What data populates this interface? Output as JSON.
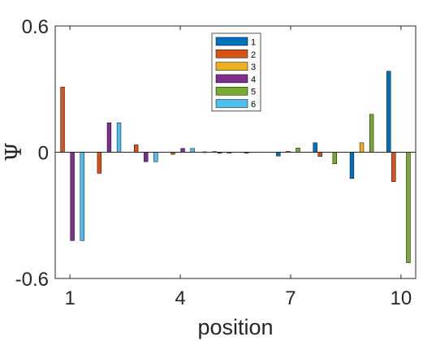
{
  "chart_data": {
    "type": "bar",
    "xlabel": "position",
    "ylabel": "Ψ",
    "xlim": [
      0.6,
      10.4
    ],
    "ylim": [
      -0.6,
      0.6
    ],
    "xticks": [
      1,
      4,
      7,
      10
    ],
    "xtick_labels": [
      "1",
      "4",
      "7",
      "10"
    ],
    "yticks": [
      -0.6,
      0,
      0.6
    ],
    "ytick_labels": [
      "-0.6",
      "0",
      "0.6"
    ],
    "grid": false,
    "legend_position": "top-center",
    "categories": [
      1,
      2,
      3,
      4,
      5,
      6,
      7,
      8,
      9,
      10
    ],
    "series": [
      {
        "name": "1",
        "color": "#0072BD",
        "values": [
          0.0,
          0.0,
          0.0,
          0.0,
          0.002,
          0.0,
          -0.018,
          0.045,
          -0.125,
          0.385
        ]
      },
      {
        "name": "2",
        "color": "#D95319",
        "values": [
          0.31,
          -0.1,
          0.035,
          -0.01,
          0.0,
          -0.005,
          0.0,
          -0.02,
          0.0,
          -0.14
        ]
      },
      {
        "name": "3",
        "color": "#EDB120",
        "values": [
          0.0,
          0.0,
          0.0,
          0.0,
          0.003,
          0.0,
          0.005,
          0.0,
          0.045,
          0.0
        ]
      },
      {
        "name": "4",
        "color": "#7E2F8E",
        "values": [
          -0.42,
          0.14,
          -0.045,
          0.018,
          -0.005,
          0.0,
          0.0,
          0.0,
          0.0,
          0.0
        ]
      },
      {
        "name": "5",
        "color": "#77AC30",
        "values": [
          0.0,
          0.0,
          0.0,
          0.0,
          0.0,
          0.0,
          0.02,
          -0.055,
          0.18,
          -0.525
        ]
      },
      {
        "name": "6",
        "color": "#4DBEEE",
        "values": [
          -0.42,
          0.14,
          -0.045,
          0.018,
          -0.005,
          0.0,
          0.0,
          0.0,
          0.0,
          0.0
        ]
      }
    ]
  }
}
